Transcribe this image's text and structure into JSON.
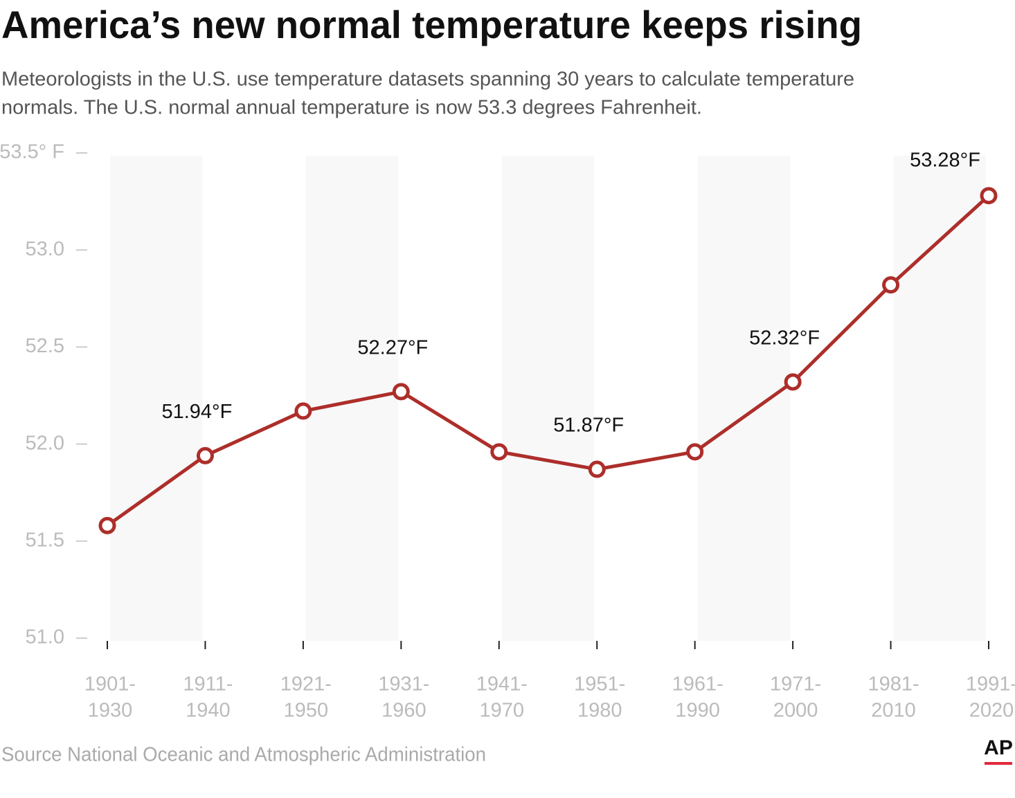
{
  "chart_data": {
    "type": "line",
    "title": "America’s new normal temperature keeps rising",
    "subtitle": [
      "Meteorologists in the U.S. use temperature datasets spanning 30 years to calculate temperature",
      "normals. The U.S. normal annual temperature is now 53.3 degrees Fahrenheit."
    ],
    "categories": [
      [
        "1901-",
        "1930"
      ],
      [
        "1911-",
        "1940"
      ],
      [
        "1921-",
        "1950"
      ],
      [
        "1931-",
        "1960"
      ],
      [
        "1941-",
        "1970"
      ],
      [
        "1951-",
        "1980"
      ],
      [
        "1961-",
        "1990"
      ],
      [
        "1971-",
        "2000"
      ],
      [
        "1981-",
        "2010"
      ],
      [
        "1991-",
        "2020"
      ]
    ],
    "values": [
      51.58,
      51.94,
      52.17,
      52.27,
      51.96,
      51.87,
      51.96,
      52.32,
      52.82,
      53.28
    ],
    "value_labels": [
      null,
      "51.94°F",
      null,
      "52.27°F",
      null,
      "51.87°F",
      null,
      "52.32°F",
      null,
      "53.28°F"
    ],
    "color": "#ad2e2a",
    "ylim": [
      51.0,
      53.5
    ],
    "yticks": [
      {
        "value": 53.5,
        "label": "53.5° F"
      },
      {
        "value": 53.0,
        "label": "53.0"
      },
      52.5,
      {
        "value": 52.0,
        "label": "52.0"
      },
      51.5,
      {
        "value": 51.0,
        "label": "51.0"
      }
    ],
    "source": "Source  National Oceanic and Atmospheric Administration",
    "logo": "AP"
  }
}
